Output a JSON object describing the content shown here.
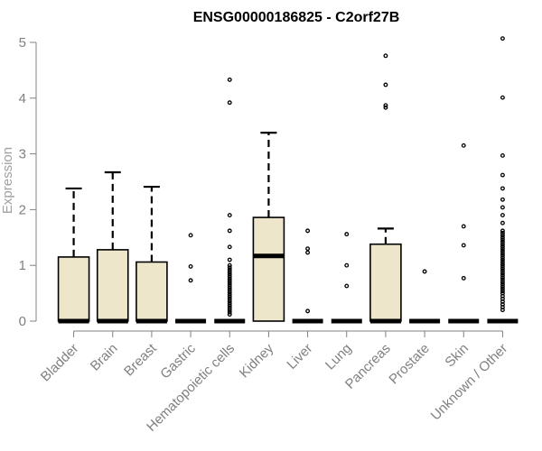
{
  "chart_data": {
    "type": "box",
    "title": "ENSG00000186825 - C2orf27B",
    "xlabel": "",
    "ylabel": "Expression",
    "ylim": [
      0,
      5
    ],
    "yticks": [
      0,
      1,
      2,
      3,
      4,
      5
    ],
    "box_fill": "#ede6cb",
    "categories": [
      "Bladder",
      "Brain",
      "Breast",
      "Gastric",
      "Hematopoietic cells",
      "Kidney",
      "Liver",
      "Lung",
      "Pancreas",
      "Prostate",
      "Skin",
      "Unknown / Other"
    ],
    "boxes": [
      {
        "category": "Bladder",
        "min": 0,
        "q1": 0,
        "median": 0,
        "q3": 1.15,
        "max": 2.38,
        "outliers": []
      },
      {
        "category": "Brain",
        "min": 0,
        "q1": 0,
        "median": 0,
        "q3": 1.28,
        "max": 2.67,
        "outliers": []
      },
      {
        "category": "Breast",
        "min": 0,
        "q1": 0,
        "median": 0,
        "q3": 1.06,
        "max": 2.41,
        "outliers": []
      },
      {
        "category": "Gastric",
        "min": 0,
        "q1": 0,
        "median": 0,
        "q3": 0,
        "max": 0,
        "outliers": [
          1.54,
          0.98,
          0.73
        ]
      },
      {
        "category": "Hematopoietic cells",
        "min": 0,
        "q1": 0,
        "median": 0,
        "q3": 0,
        "max": 0,
        "outliers": [
          4.33,
          3.92,
          1.9,
          1.62,
          1.33,
          1.1,
          1.0,
          0.96,
          0.92,
          0.88,
          0.84,
          0.8,
          0.76,
          0.72,
          0.68,
          0.64,
          0.6,
          0.56,
          0.52,
          0.48,
          0.44,
          0.4,
          0.36,
          0.32,
          0.28,
          0.24,
          0.2,
          0.16,
          0.12
        ]
      },
      {
        "category": "Kidney",
        "min": 0,
        "q1": 0,
        "median": 1.17,
        "q3": 1.86,
        "max": 3.38,
        "outliers": []
      },
      {
        "category": "Liver",
        "min": 0,
        "q1": 0,
        "median": 0,
        "q3": 0,
        "max": 0,
        "outliers": [
          1.62,
          1.3,
          1.23,
          0.18
        ]
      },
      {
        "category": "Lung",
        "min": 0,
        "q1": 0,
        "median": 0,
        "q3": 0,
        "max": 0,
        "outliers": [
          1.56,
          1.0,
          0.63
        ]
      },
      {
        "category": "Pancreas",
        "min": 0,
        "q1": 0,
        "median": 0,
        "q3": 1.38,
        "max": 1.66,
        "outliers": [
          4.76,
          4.24,
          3.87,
          3.83
        ]
      },
      {
        "category": "Prostate",
        "min": 0,
        "q1": 0,
        "median": 0,
        "q3": 0,
        "max": 0,
        "outliers": [
          0.89
        ]
      },
      {
        "category": "Skin",
        "min": 0,
        "q1": 0,
        "median": 0,
        "q3": 0,
        "max": 0,
        "outliers": [
          3.15,
          1.7,
          1.36,
          0.77
        ]
      },
      {
        "category": "Unknown / Other",
        "min": 0,
        "q1": 0,
        "median": 0,
        "q3": 0,
        "max": 0,
        "outliers": [
          5.07,
          4.01,
          2.97,
          2.62,
          2.38,
          2.18,
          2.04,
          1.9,
          1.76,
          1.62,
          1.58,
          1.54,
          1.5,
          1.46,
          1.42,
          1.38,
          1.34,
          1.3,
          1.26,
          1.22,
          1.18,
          1.14,
          1.1,
          1.06,
          1.02,
          0.98,
          0.94,
          0.9,
          0.86,
          0.82,
          0.78,
          0.74,
          0.7,
          0.66,
          0.62,
          0.58,
          0.54,
          0.5,
          0.45,
          0.4,
          0.35,
          0.3,
          0.25,
          0.2
        ]
      }
    ]
  }
}
